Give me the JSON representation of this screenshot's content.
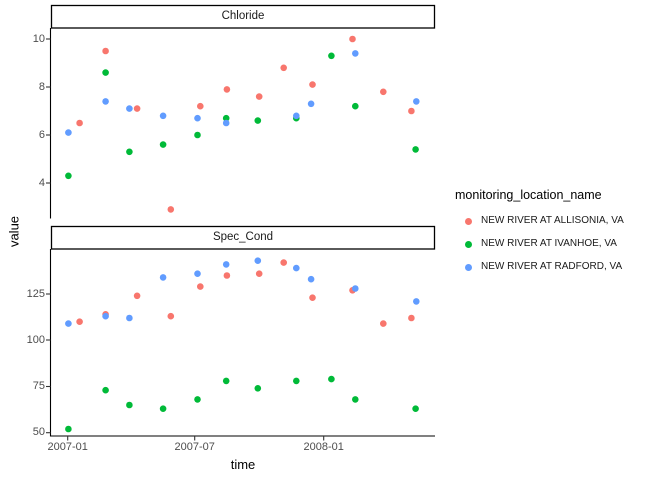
{
  "figure": {
    "y_axis_title": "value",
    "x_axis_title": "time"
  },
  "x_axis": {
    "ticks": [
      "2007-01",
      "2007-07",
      "2008-01"
    ]
  },
  "legend": {
    "title": "monitoring_location_name",
    "items": [
      {
        "label": "NEW RIVER AT ALLISONIA, VA",
        "color": "#F8766D"
      },
      {
        "label": "NEW RIVER AT IVANHOE, VA",
        "color": "#00BA38"
      },
      {
        "label": "NEW RIVER AT RADFORD, VA",
        "color": "#619CFF"
      }
    ]
  },
  "chart_data": [
    {
      "type": "scatter",
      "title": "Chloride",
      "xlabel": "time",
      "ylabel": "value",
      "yticks": [
        10,
        8,
        6,
        4
      ],
      "ylim": [
        2.5,
        10.5
      ],
      "xlim": [
        "2006-12-08",
        "2008-06-08"
      ],
      "grid": false,
      "legend_position": "right",
      "series": [
        {
          "name": "NEW RIVER AT ALLISONIA, VA",
          "color": "#F8766D",
          "points": [
            {
              "date": "2007-01-18",
              "value": 6.5
            },
            {
              "date": "2007-02-24",
              "value": 9.5
            },
            {
              "date": "2007-04-10",
              "value": 7.1
            },
            {
              "date": "2007-05-28",
              "value": 2.9
            },
            {
              "date": "2007-07-09",
              "value": 7.2
            },
            {
              "date": "2007-08-16",
              "value": 7.9
            },
            {
              "date": "2007-10-01",
              "value": 7.6
            },
            {
              "date": "2007-11-05",
              "value": 8.8
            },
            {
              "date": "2007-12-16",
              "value": 8.1
            },
            {
              "date": "2008-02-11",
              "value": 10.0
            },
            {
              "date": "2008-03-26",
              "value": 7.8
            },
            {
              "date": "2008-05-05",
              "value": 7.0
            }
          ]
        },
        {
          "name": "NEW RIVER AT IVANHOE, VA",
          "color": "#00BA38",
          "points": [
            {
              "date": "2007-01-02",
              "value": 4.3
            },
            {
              "date": "2007-02-24",
              "value": 8.6
            },
            {
              "date": "2007-03-30",
              "value": 5.3
            },
            {
              "date": "2007-05-17",
              "value": 5.6
            },
            {
              "date": "2007-07-05",
              "value": 6.0
            },
            {
              "date": "2007-08-15",
              "value": 6.7
            },
            {
              "date": "2007-09-29",
              "value": 6.6
            },
            {
              "date": "2007-11-23",
              "value": 6.7
            },
            {
              "date": "2008-01-12",
              "value": 9.3
            },
            {
              "date": "2008-02-15",
              "value": 7.2
            },
            {
              "date": "2008-05-11",
              "value": 5.4
            }
          ]
        },
        {
          "name": "NEW RIVER AT RADFORD, VA",
          "color": "#619CFF",
          "points": [
            {
              "date": "2007-01-02",
              "value": 6.1
            },
            {
              "date": "2007-02-24",
              "value": 7.4
            },
            {
              "date": "2007-03-30",
              "value": 7.1
            },
            {
              "date": "2007-05-17",
              "value": 6.8
            },
            {
              "date": "2007-07-05",
              "value": 6.7
            },
            {
              "date": "2007-08-15",
              "value": 6.5
            },
            {
              "date": "2007-11-23",
              "value": 6.8
            },
            {
              "date": "2007-12-14",
              "value": 7.3
            },
            {
              "date": "2008-02-15",
              "value": 9.4
            },
            {
              "date": "2008-05-12",
              "value": 7.4
            }
          ]
        }
      ]
    },
    {
      "type": "scatter",
      "title": "Spec_Cond",
      "xlabel": "time",
      "ylabel": "value",
      "yticks": [
        125,
        100,
        75,
        50
      ],
      "ylim": [
        48,
        149
      ],
      "xlim": [
        "2006-12-08",
        "2008-06-08"
      ],
      "grid": false,
      "legend_position": "right",
      "series": [
        {
          "name": "NEW RIVER AT ALLISONIA, VA",
          "color": "#F8766D",
          "points": [
            {
              "date": "2007-01-18",
              "value": 110
            },
            {
              "date": "2007-02-24",
              "value": 114
            },
            {
              "date": "2007-04-10",
              "value": 124
            },
            {
              "date": "2007-05-28",
              "value": 113
            },
            {
              "date": "2007-07-09",
              "value": 129
            },
            {
              "date": "2007-08-16",
              "value": 135
            },
            {
              "date": "2007-10-01",
              "value": 136
            },
            {
              "date": "2007-11-05",
              "value": 142
            },
            {
              "date": "2007-12-16",
              "value": 123
            },
            {
              "date": "2008-02-11",
              "value": 127
            },
            {
              "date": "2008-03-26",
              "value": 109
            },
            {
              "date": "2008-05-05",
              "value": 112
            }
          ]
        },
        {
          "name": "NEW RIVER AT IVANHOE, VA",
          "color": "#00BA38",
          "points": [
            {
              "date": "2007-01-02",
              "value": 52
            },
            {
              "date": "2007-02-24",
              "value": 73
            },
            {
              "date": "2007-03-30",
              "value": 65
            },
            {
              "date": "2007-05-17",
              "value": 63
            },
            {
              "date": "2007-07-05",
              "value": 68
            },
            {
              "date": "2007-08-15",
              "value": 78
            },
            {
              "date": "2007-09-29",
              "value": 74
            },
            {
              "date": "2007-11-23",
              "value": 78
            },
            {
              "date": "2008-01-12",
              "value": 79
            },
            {
              "date": "2008-02-15",
              "value": 68
            },
            {
              "date": "2008-05-11",
              "value": 63
            }
          ]
        },
        {
          "name": "NEW RIVER AT RADFORD, VA",
          "color": "#619CFF",
          "points": [
            {
              "date": "2007-01-02",
              "value": 109
            },
            {
              "date": "2007-02-24",
              "value": 113
            },
            {
              "date": "2007-03-30",
              "value": 112
            },
            {
              "date": "2007-05-17",
              "value": 134
            },
            {
              "date": "2007-07-05",
              "value": 136
            },
            {
              "date": "2007-08-15",
              "value": 141
            },
            {
              "date": "2007-09-29",
              "value": 143
            },
            {
              "date": "2007-11-23",
              "value": 139
            },
            {
              "date": "2007-12-14",
              "value": 133
            },
            {
              "date": "2008-02-15",
              "value": 128
            },
            {
              "date": "2008-05-12",
              "value": 121
            }
          ]
        }
      ]
    }
  ]
}
